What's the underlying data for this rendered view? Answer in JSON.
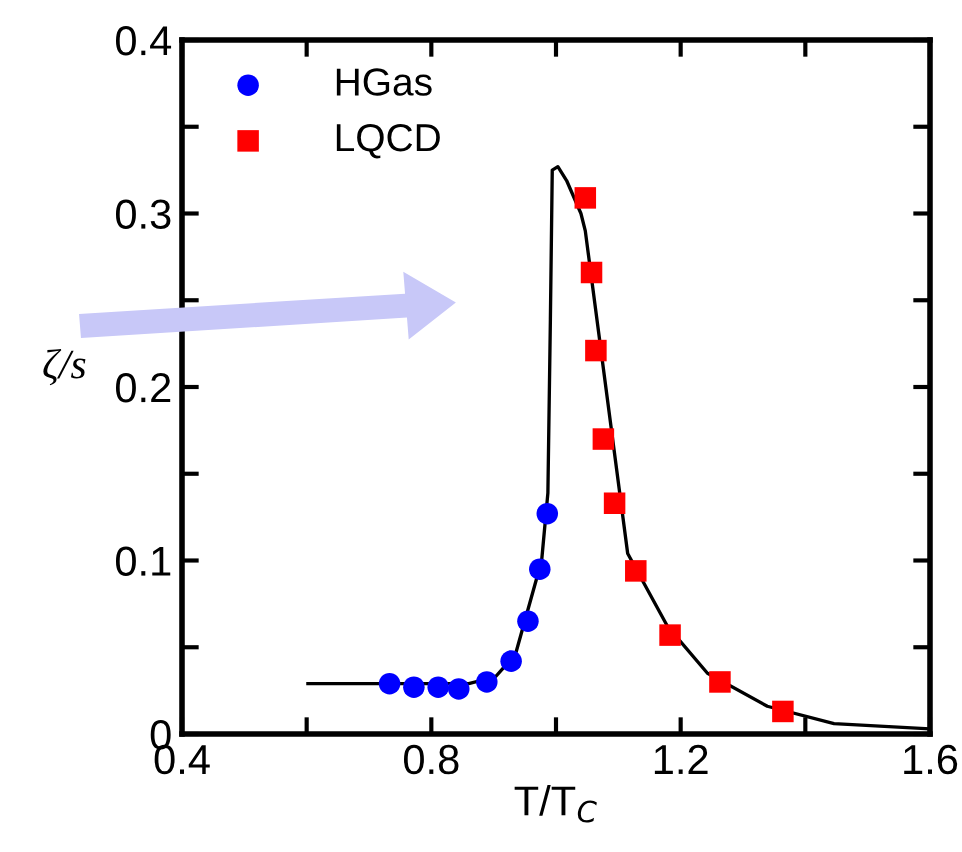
{
  "chart_data": {
    "type": "scatter",
    "xlabel": "T/T$_{C}$",
    "ylabel": "ζ/s",
    "xlim": [
      0.4,
      1.6
    ],
    "ylim": [
      0,
      0.4
    ],
    "xticks": [
      0.4,
      {
        "value": 0.6,
        "label": null
      },
      0.8,
      {
        "value": 1.0,
        "label": null
      },
      1.2,
      {
        "value": 1.4,
        "label": null
      },
      1.6
    ],
    "yticks": [
      0,
      {
        "value": 0.05,
        "label": null
      },
      0.1,
      {
        "value": 0.15,
        "label": null
      },
      0.2,
      {
        "value": 0.25,
        "label": null
      },
      0.3,
      {
        "value": 0.35,
        "label": null
      },
      0.4
    ],
    "grid": false,
    "legend": "top left",
    "series": [
      {
        "type": "line",
        "color": "#000000",
        "marker": "none",
        "x": [
          0.602,
          0.7,
          0.8,
          0.86,
          0.903,
          0.935,
          0.977,
          0.987,
          0.991,
          0.994,
          1.003,
          1.017,
          1.04,
          1.047,
          1.115,
          1.179,
          1.243,
          1.339,
          1.446,
          1.6
        ],
        "values": [
          0.029,
          0.029,
          0.029,
          0.029,
          0.033,
          0.046,
          0.1,
          0.139,
          0.239,
          0.325,
          0.327,
          0.319,
          0.3,
          0.29,
          0.104,
          0.062,
          0.035,
          0.016,
          0.006,
          0.003
        ]
      },
      {
        "name": "HGas",
        "color": "#0000ff",
        "marker": "circle",
        "x": [
          0.733,
          0.772,
          0.811,
          0.844,
          0.889,
          0.928,
          0.955,
          0.974,
          0.986
        ],
        "values": [
          0.029,
          0.027,
          0.027,
          0.026,
          0.03,
          0.042,
          0.065,
          0.095,
          0.127
        ]
      },
      {
        "name": "LQCD",
        "color": "#ff0000",
        "marker": "square",
        "x": [
          1.047,
          1.057,
          1.064,
          1.076,
          1.094,
          1.128,
          1.183,
          1.263,
          1.364
        ],
        "values": [
          0.309,
          0.266,
          0.221,
          0.17,
          0.133,
          0.094,
          0.057,
          0.03,
          0.013
        ]
      }
    ]
  }
}
